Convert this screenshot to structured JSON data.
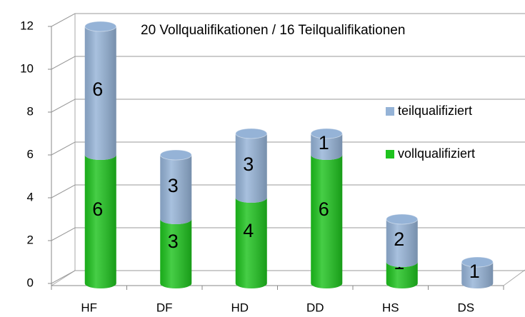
{
  "chart_data": {
    "type": "bar",
    "stacked": true,
    "annotation": "20 Vollqualifikationen / 16 Teilqualifikationen",
    "categories": [
      "HF",
      "DF",
      "HD",
      "DD",
      "HS",
      "DS"
    ],
    "series": [
      {
        "name": "vollqualifiziert",
        "color": "#1ec31e",
        "values": [
          6,
          3,
          4,
          6,
          1,
          0
        ]
      },
      {
        "name": "teilqualifiziert",
        "color": "#95b3d7",
        "values": [
          6,
          3,
          3,
          1,
          2,
          1
        ]
      }
    ],
    "ylim": [
      0,
      12
    ],
    "yticks": [
      0,
      2,
      4,
      6,
      8,
      10,
      12
    ],
    "grid": true,
    "legend": "right"
  }
}
